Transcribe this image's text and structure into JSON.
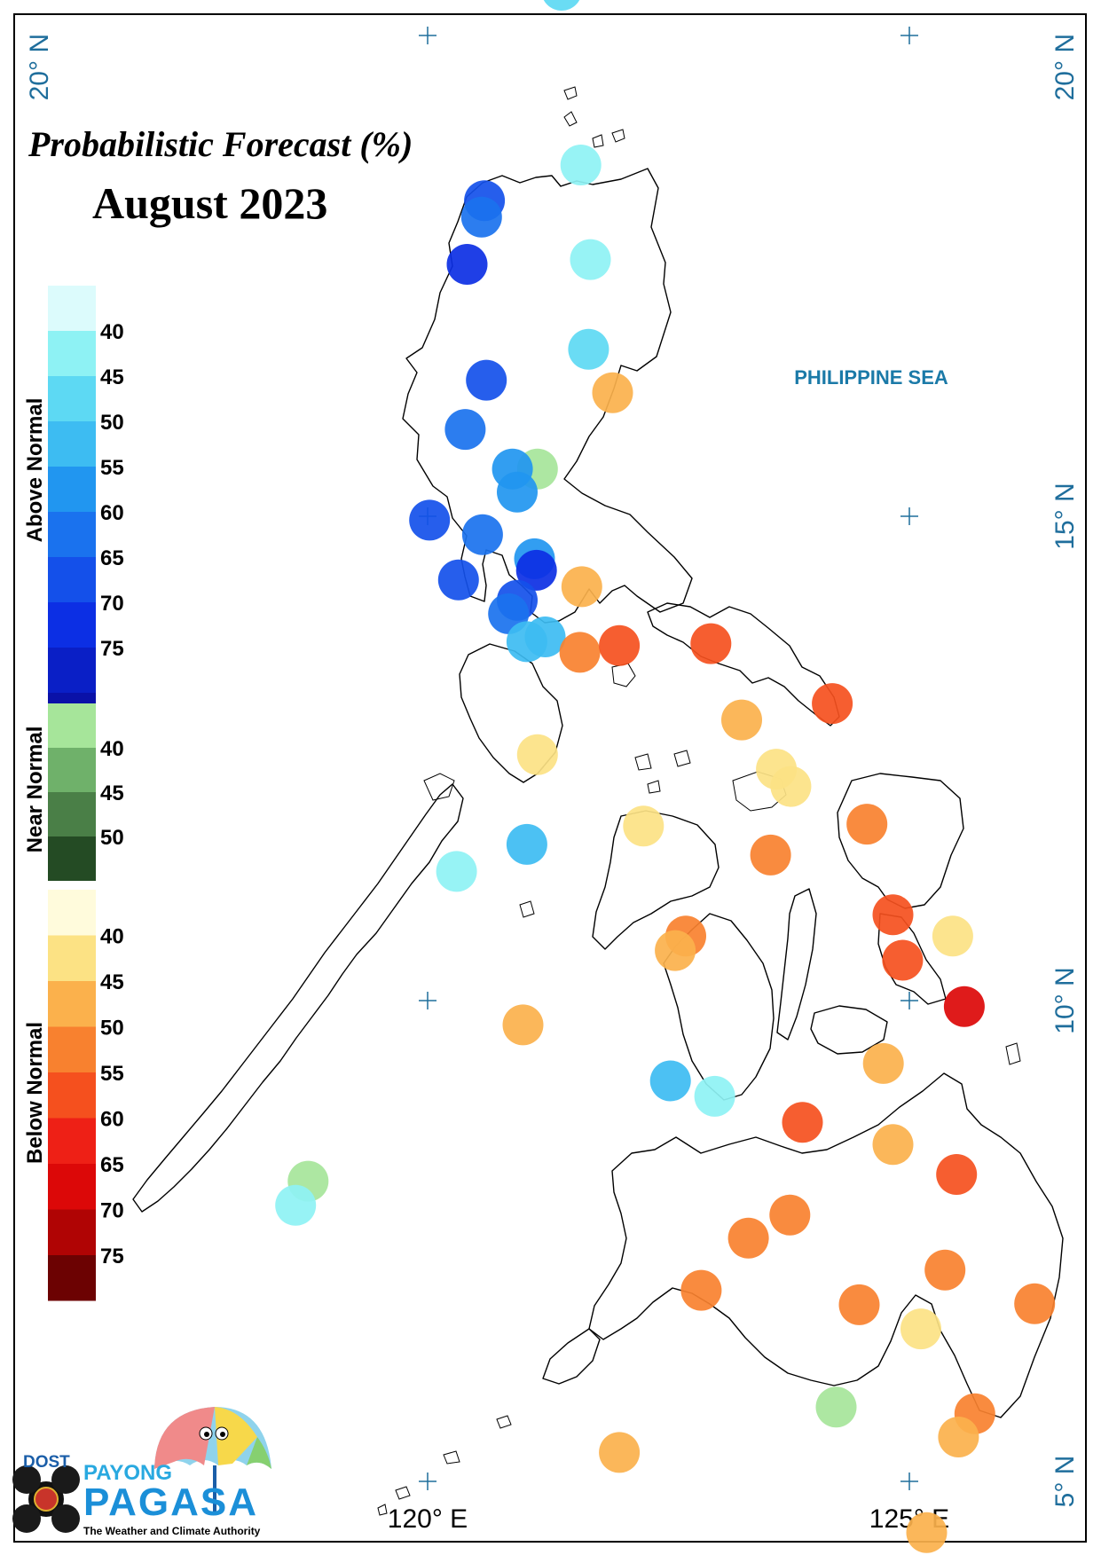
{
  "title_line1": "Probabilistic Forecast (%)",
  "title_line2": "August 2023",
  "sea_label": "PHILIPPINE SEA",
  "axis_labels": {
    "lat_20_left": "20° N",
    "lat_20_right": "20° N",
    "lat_15": "15° N",
    "lat_10": "10° N",
    "lat_5": "5° N",
    "lon_120": "120° E",
    "lon_125": "125° E"
  },
  "legend": {
    "above": {
      "title": "Above Normal",
      "colors": [
        "#dcfbfc",
        "#8ef2f4",
        "#5dd9f3",
        "#3dbcf2",
        "#2196f0",
        "#1a72ee",
        "#1450ea",
        "#0c2fe4",
        "#0a1fc6",
        "#0a11a8"
      ],
      "labels": [
        "40",
        "45",
        "50",
        "55",
        "60",
        "65",
        "70",
        "75"
      ]
    },
    "near": {
      "title": "Near Normal",
      "colors": [
        "#a6e59a",
        "#6fb16a",
        "#4a7f47",
        "#244b24"
      ],
      "labels": [
        "40",
        "45",
        "50"
      ]
    },
    "below": {
      "title": "Below Normal",
      "colors": [
        "#fffbdc",
        "#fce284",
        "#fbb14c",
        "#f8812f",
        "#f5501e",
        "#ee2016",
        "#dc0808",
        "#b00404",
        "#6c0202"
      ],
      "labels": [
        "40",
        "45",
        "50",
        "55",
        "60",
        "65",
        "70",
        "75"
      ]
    }
  },
  "logo": {
    "agency": "DOST",
    "line1": "PAYONG",
    "line2": "PAGASA",
    "tagline": "The Weather and Climate Authority"
  },
  "stations": [
    {
      "lon": 121.39,
      "lat": 20.45,
      "category": "above",
      "prob": 45
    },
    {
      "lon": 121.59,
      "lat": 18.64,
      "category": "above",
      "prob": 40
    },
    {
      "lon": 120.59,
      "lat": 18.27,
      "category": "above",
      "prob": 65
    },
    {
      "lon": 120.56,
      "lat": 18.1,
      "category": "above",
      "prob": 60
    },
    {
      "lon": 120.41,
      "lat": 17.61,
      "category": "above",
      "prob": 70
    },
    {
      "lon": 121.69,
      "lat": 17.66,
      "category": "above",
      "prob": 40
    },
    {
      "lon": 121.67,
      "lat": 16.73,
      "category": "above",
      "prob": 45
    },
    {
      "lon": 120.61,
      "lat": 16.41,
      "category": "above",
      "prob": 65
    },
    {
      "lon": 120.39,
      "lat": 15.9,
      "category": "above",
      "prob": 60
    },
    {
      "lon": 121.92,
      "lat": 16.28,
      "category": "below",
      "prob": 45
    },
    {
      "lon": 121.14,
      "lat": 15.49,
      "category": "near",
      "prob": 40
    },
    {
      "lon": 120.88,
      "lat": 15.49,
      "category": "above",
      "prob": 55
    },
    {
      "lon": 120.93,
      "lat": 15.25,
      "category": "above",
      "prob": 55
    },
    {
      "lon": 120.02,
      "lat": 14.96,
      "category": "above",
      "prob": 65
    },
    {
      "lon": 120.57,
      "lat": 14.81,
      "category": "above",
      "prob": 60
    },
    {
      "lon": 121.11,
      "lat": 14.56,
      "category": "above",
      "prob": 55
    },
    {
      "lon": 121.13,
      "lat": 14.44,
      "category": "above",
      "prob": 70
    },
    {
      "lon": 120.32,
      "lat": 14.34,
      "category": "above",
      "prob": 65
    },
    {
      "lon": 120.93,
      "lat": 14.13,
      "category": "above",
      "prob": 65
    },
    {
      "lon": 120.84,
      "lat": 13.99,
      "category": "above",
      "prob": 60
    },
    {
      "lon": 121.6,
      "lat": 14.27,
      "category": "below",
      "prob": 45
    },
    {
      "lon": 121.03,
      "lat": 13.7,
      "category": "above",
      "prob": 50
    },
    {
      "lon": 121.22,
      "lat": 13.75,
      "category": "above",
      "prob": 50
    },
    {
      "lon": 121.58,
      "lat": 13.59,
      "category": "below",
      "prob": 50
    },
    {
      "lon": 121.99,
      "lat": 13.66,
      "category": "below",
      "prob": 55
    },
    {
      "lon": 122.94,
      "lat": 13.68,
      "category": "below",
      "prob": 55
    },
    {
      "lon": 124.2,
      "lat": 13.06,
      "category": "below",
      "prob": 55
    },
    {
      "lon": 123.26,
      "lat": 12.89,
      "category": "below",
      "prob": 45
    },
    {
      "lon": 121.14,
      "lat": 12.53,
      "category": "below",
      "prob": 40
    },
    {
      "lon": 123.62,
      "lat": 12.38,
      "category": "below",
      "prob": 40
    },
    {
      "lon": 123.77,
      "lat": 12.2,
      "category": "below",
      "prob": 40
    },
    {
      "lon": 122.24,
      "lat": 11.79,
      "category": "below",
      "prob": 40
    },
    {
      "lon": 121.03,
      "lat": 11.6,
      "category": "above",
      "prob": 50
    },
    {
      "lon": 123.56,
      "lat": 11.49,
      "category": "below",
      "prob": 50
    },
    {
      "lon": 124.56,
      "lat": 11.81,
      "category": "below",
      "prob": 50
    },
    {
      "lon": 120.3,
      "lat": 11.32,
      "category": "above",
      "prob": 40
    },
    {
      "lon": 124.83,
      "lat": 10.87,
      "category": "below",
      "prob": 55
    },
    {
      "lon": 122.68,
      "lat": 10.65,
      "category": "below",
      "prob": 50
    },
    {
      "lon": 122.57,
      "lat": 10.5,
      "category": "below",
      "prob": 45
    },
    {
      "lon": 125.45,
      "lat": 10.65,
      "category": "below",
      "prob": 40
    },
    {
      "lon": 124.93,
      "lat": 10.4,
      "category": "below",
      "prob": 55
    },
    {
      "lon": 125.57,
      "lat": 9.92,
      "category": "below",
      "prob": 65
    },
    {
      "lon": 120.99,
      "lat": 9.73,
      "category": "below",
      "prob": 45
    },
    {
      "lon": 124.73,
      "lat": 9.33,
      "category": "below",
      "prob": 45
    },
    {
      "lon": 122.52,
      "lat": 9.15,
      "category": "above",
      "prob": 50
    },
    {
      "lon": 122.98,
      "lat": 8.99,
      "category": "above",
      "prob": 40
    },
    {
      "lon": 123.89,
      "lat": 8.72,
      "category": "below",
      "prob": 55
    },
    {
      "lon": 124.83,
      "lat": 8.49,
      "category": "below",
      "prob": 45
    },
    {
      "lon": 125.49,
      "lat": 8.18,
      "category": "below",
      "prob": 55
    },
    {
      "lon": 118.76,
      "lat": 8.11,
      "category": "near",
      "prob": 40
    },
    {
      "lon": 118.63,
      "lat": 7.86,
      "category": "above",
      "prob": 40
    },
    {
      "lon": 123.76,
      "lat": 7.76,
      "category": "below",
      "prob": 50
    },
    {
      "lon": 123.33,
      "lat": 7.52,
      "category": "below",
      "prob": 50
    },
    {
      "lon": 125.37,
      "lat": 7.19,
      "category": "below",
      "prob": 50
    },
    {
      "lon": 122.84,
      "lat": 6.98,
      "category": "below",
      "prob": 50
    },
    {
      "lon": 124.48,
      "lat": 6.83,
      "category": "below",
      "prob": 50
    },
    {
      "lon": 126.3,
      "lat": 6.84,
      "category": "below",
      "prob": 50
    },
    {
      "lon": 125.12,
      "lat": 6.58,
      "category": "below",
      "prob": 40
    },
    {
      "lon": 124.24,
      "lat": 5.77,
      "category": "near",
      "prob": 40
    },
    {
      "lon": 125.68,
      "lat": 5.7,
      "category": "below",
      "prob": 50
    },
    {
      "lon": 125.51,
      "lat": 5.46,
      "category": "below",
      "prob": 45
    },
    {
      "lon": 121.99,
      "lat": 5.3,
      "category": "below",
      "prob": 45
    },
    {
      "lon": 125.18,
      "lat": 4.47,
      "category": "below",
      "prob": 45
    }
  ]
}
